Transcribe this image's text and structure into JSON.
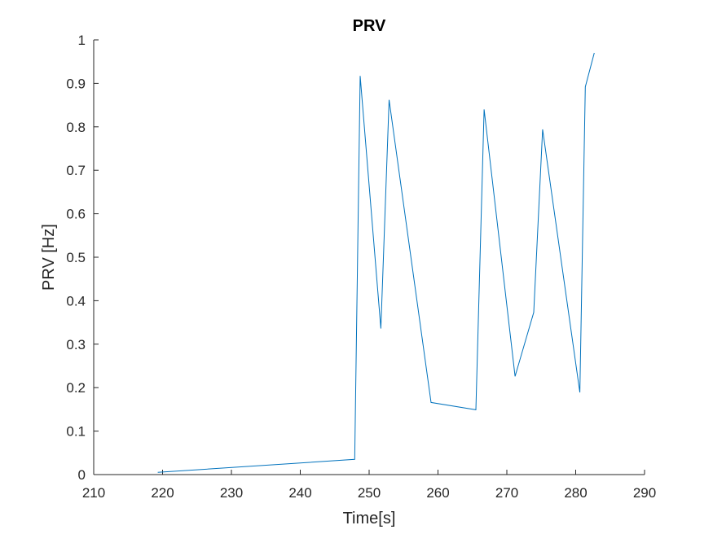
{
  "chart_data": {
    "type": "line",
    "title": "PRV",
    "xlabel": "Time[s]",
    "ylabel": "PRV [Hz]",
    "xlim": [
      210,
      290
    ],
    "ylim": [
      0,
      1
    ],
    "x_ticks": [
      210,
      220,
      230,
      240,
      250,
      260,
      270,
      280,
      290
    ],
    "y_ticks": [
      0,
      0.1,
      0.2,
      0.3,
      0.4,
      0.5,
      0.6,
      0.7,
      0.8,
      0.9,
      1
    ],
    "x_tick_labels": [
      "210",
      "220",
      "230",
      "240",
      "250",
      "260",
      "270",
      "280",
      "290"
    ],
    "y_tick_labels": [
      "0",
      "0.1",
      "0.2",
      "0.3",
      "0.4",
      "0.5",
      "0.6",
      "0.7",
      "0.8",
      "0.9",
      "1"
    ],
    "grid": false,
    "line_color": "#0072BD",
    "axis_color": "#262626",
    "series": [
      {
        "x": [
          219.3,
          247.9,
          248.7,
          251.7,
          252.9,
          259.0,
          265.5,
          266.7,
          271.2,
          273.9,
          275.2,
          280.6,
          281.4,
          282.7
        ],
        "y": [
          0.005,
          0.035,
          0.917,
          0.336,
          0.862,
          0.166,
          0.149,
          0.84,
          0.226,
          0.373,
          0.794,
          0.189,
          0.892,
          0.97
        ]
      }
    ]
  }
}
